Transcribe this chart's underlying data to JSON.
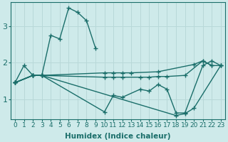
{
  "xlabel": "Humidex (Indice chaleur)",
  "ylabel": "",
  "xlim": [
    -0.5,
    23.5
  ],
  "ylim": [
    0.45,
    3.65
  ],
  "bg_color": "#ceeaea",
  "line_color": "#1a6e6a",
  "grid_color": "#b8d8d8",
  "yticks": [
    1,
    2,
    3
  ],
  "xticks": [
    0,
    1,
    2,
    3,
    4,
    5,
    6,
    7,
    8,
    9,
    10,
    11,
    12,
    13,
    14,
    15,
    16,
    17,
    18,
    19,
    20,
    21,
    22,
    23
  ],
  "lines": [
    {
      "x": [
        0,
        1,
        2,
        3,
        4,
        5,
        6,
        7,
        8,
        9
      ],
      "y": [
        1.45,
        1.92,
        1.65,
        1.65,
        2.75,
        2.65,
        3.5,
        3.38,
        3.15,
        2.4
      ]
    },
    {
      "x": [
        0,
        2,
        3,
        10,
        11,
        12,
        13,
        16,
        20,
        21,
        22
      ],
      "y": [
        1.45,
        1.65,
        1.65,
        1.72,
        1.72,
        1.72,
        1.72,
        1.75,
        1.95,
        2.05,
        1.92
      ]
    },
    {
      "x": [
        0,
        2,
        3,
        10,
        11,
        12,
        14,
        15,
        16,
        17,
        19,
        21,
        22,
        23
      ],
      "y": [
        1.45,
        1.65,
        1.65,
        1.6,
        1.6,
        1.6,
        1.6,
        1.6,
        1.62,
        1.62,
        1.65,
        2.05,
        1.92,
        1.92
      ]
    },
    {
      "x": [
        0,
        2,
        3,
        10,
        11,
        12,
        14,
        15,
        16,
        17,
        18,
        19,
        21,
        22,
        23
      ],
      "y": [
        1.45,
        1.65,
        1.65,
        0.65,
        1.1,
        1.05,
        1.27,
        1.22,
        1.4,
        1.27,
        0.62,
        0.62,
        1.92,
        2.05,
        1.92
      ]
    },
    {
      "x": [
        0,
        2,
        3,
        18,
        19,
        20,
        23
      ],
      "y": [
        1.45,
        1.65,
        1.65,
        0.55,
        0.6,
        0.75,
        1.92
      ]
    }
  ]
}
